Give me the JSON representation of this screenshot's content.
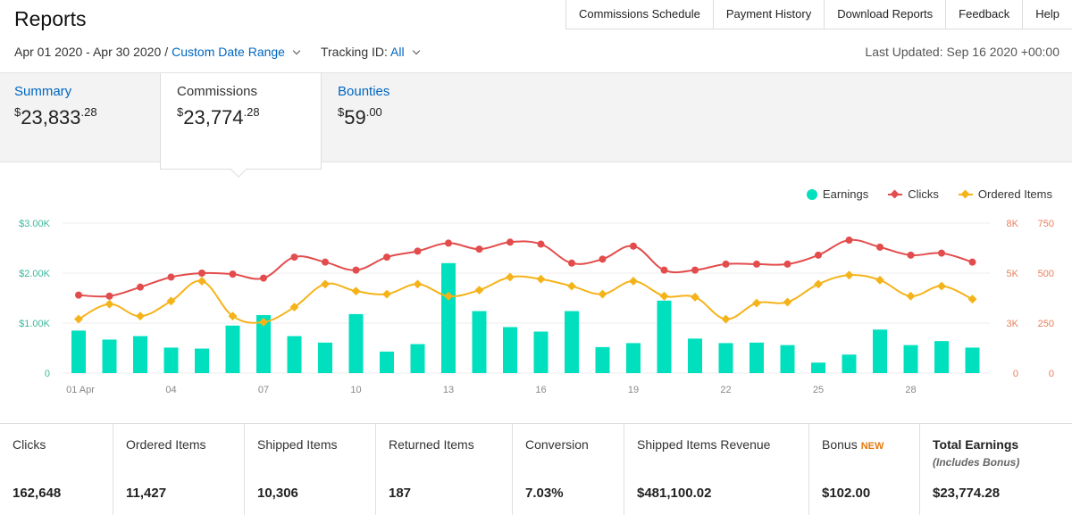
{
  "header": {
    "title": "Reports",
    "nav": [
      "Commissions Schedule",
      "Payment History",
      "Download Reports",
      "Feedback",
      "Help"
    ]
  },
  "filters": {
    "date_range": "Apr 01 2020 - Apr 30 2020",
    "separator": "/",
    "range_type": "Custom Date Range",
    "tracking_label": "Tracking ID:",
    "tracking_value": "All",
    "last_updated": "Last Updated: Sep 16 2020 +00:00"
  },
  "summary_tabs": [
    {
      "label": "Summary",
      "currency": "$",
      "whole": "23,833",
      "cents": ".28"
    },
    {
      "label": "Commissions",
      "currency": "$",
      "whole": "23,774",
      "cents": ".28"
    },
    {
      "label": "Bounties",
      "currency": "$",
      "whole": "59",
      "cents": ".00"
    }
  ],
  "colors": {
    "earnings": "#00e0be",
    "clicks": "#e34c4c",
    "ordered": "#f5b31a"
  },
  "chart_data": {
    "type": "bar+line",
    "x_tick_labels": [
      "01 Apr",
      "04",
      "07",
      "10",
      "13",
      "16",
      "19",
      "22",
      "25",
      "28"
    ],
    "legend": [
      "Earnings",
      "Clicks",
      "Ordered Items"
    ],
    "y_left_ticks": [
      "$3.00K",
      "$2.00K",
      "$1.00K",
      "0"
    ],
    "y_clicks_ticks": [
      "8K",
      "5K",
      "3K",
      "0"
    ],
    "y_ordered_ticks": [
      "750",
      "500",
      "250",
      "0"
    ],
    "ylim_left": [
      0,
      3000
    ],
    "ylim_clicks": [
      0,
      7500
    ],
    "ylim_ordered": [
      0,
      750
    ],
    "days": [
      1,
      2,
      3,
      4,
      5,
      6,
      7,
      8,
      9,
      10,
      11,
      12,
      13,
      14,
      15,
      16,
      17,
      18,
      19,
      20,
      21,
      22,
      23,
      24,
      25,
      26,
      27,
      28,
      29,
      30
    ],
    "series": [
      {
        "name": "Earnings",
        "kind": "bar",
        "values": [
          850,
          670,
          740,
          510,
          490,
          950,
          1160,
          740,
          610,
          1180,
          430,
          580,
          2200,
          1240,
          920,
          830,
          1240,
          520,
          600,
          1450,
          690,
          600,
          610,
          560,
          210,
          370,
          870,
          560,
          640,
          510
        ]
      },
      {
        "name": "Clicks",
        "kind": "line",
        "values": [
          3900,
          3850,
          4300,
          4800,
          5000,
          4950,
          4750,
          5800,
          5550,
          5150,
          5800,
          6100,
          6500,
          6200,
          6550,
          6450,
          5500,
          5700,
          6350,
          5150,
          5150,
          5450,
          5450,
          5450,
          5900,
          6650,
          6300,
          5900,
          6000,
          5550
        ]
      },
      {
        "name": "Ordered Items",
        "kind": "line",
        "values": [
          270,
          345,
          285,
          360,
          460,
          285,
          255,
          330,
          445,
          410,
          395,
          445,
          385,
          415,
          480,
          470,
          435,
          395,
          460,
          385,
          380,
          270,
          350,
          355,
          445,
          490,
          465,
          385,
          435,
          370
        ]
      }
    ]
  },
  "stats": [
    {
      "label": "Clicks",
      "value": "162,648"
    },
    {
      "label": "Ordered Items",
      "value": "11,427"
    },
    {
      "label": "Shipped Items",
      "value": "10,306"
    },
    {
      "label": "Returned Items",
      "value": "187"
    },
    {
      "label": "Conversion",
      "value": "7.03%"
    },
    {
      "label": "Shipped Items Revenue",
      "value": "$481,100.02"
    },
    {
      "label": "Bonus",
      "badge": "NEW",
      "value": "$102.00"
    },
    {
      "label": "Total Earnings",
      "sub": "(Includes Bonus)",
      "value": "$23,774.28"
    }
  ]
}
